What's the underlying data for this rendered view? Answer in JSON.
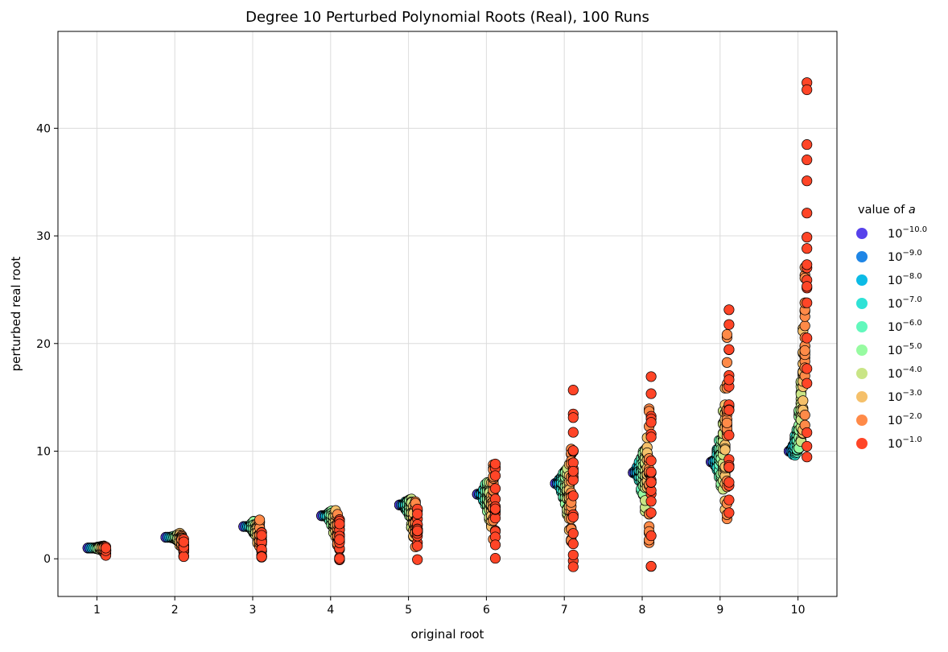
{
  "chart_data": {
    "type": "scatter",
    "title": "Degree 10 Perturbed Polynomial Roots (Real), 100 Runs",
    "xlabel": "original root",
    "ylabel": "perturbed real root",
    "xlim": [
      0.5,
      10.5
    ],
    "ylim": [
      -3.5,
      49
    ],
    "x_ticks": [
      "1",
      "2",
      "3",
      "4",
      "5",
      "6",
      "7",
      "8",
      "9",
      "10"
    ],
    "y_ticks": [
      0,
      10,
      20,
      30,
      40
    ],
    "grid": true,
    "legend": {
      "title": "value of a",
      "title_prefix": "value of ",
      "title_var": "a",
      "placement": "right"
    },
    "series": [
      {
        "name": "10^-10.0",
        "base": "10",
        "exp": "−10.0",
        "color": "#5742eb"
      },
      {
        "name": "10^-9.0",
        "base": "10",
        "exp": "−9.0",
        "color": "#1f86e6"
      },
      {
        "name": "10^-8.0",
        "base": "10",
        "exp": "−8.0",
        "color": "#0cbbe6"
      },
      {
        "name": "10^-7.0",
        "base": "10",
        "exp": "−7.0",
        "color": "#2fe2d6"
      },
      {
        "name": "10^-6.0",
        "base": "10",
        "exp": "−6.0",
        "color": "#62f8bc"
      },
      {
        "name": "10^-5.0",
        "base": "10",
        "exp": "−5.0",
        "color": "#97fba1"
      },
      {
        "name": "10^-4.0",
        "base": "10",
        "exp": "−4.0",
        "color": "#c9e586"
      },
      {
        "name": "10^-3.0",
        "base": "10",
        "exp": "−3.0",
        "color": "#f5c06a"
      },
      {
        "name": "10^-2.0",
        "base": "10",
        "exp": "−2.0",
        "color": "#ff8a48"
      },
      {
        "name": "10^-1.0",
        "base": "10",
        "exp": "−1.0",
        "color": "#ff4527"
      }
    ],
    "series_spread_y": [
      {
        "root": 1,
        "ranges": [
          [
            1,
            1
          ],
          [
            1,
            1
          ],
          [
            1,
            1
          ],
          [
            1,
            1
          ],
          [
            0.95,
            1.05
          ],
          [
            0.9,
            1.1
          ],
          [
            0.85,
            1.15
          ],
          [
            0.8,
            1.2
          ],
          [
            0.6,
            1.2
          ],
          [
            0.3,
            1.1
          ]
        ]
      },
      {
        "root": 2,
        "ranges": [
          [
            2,
            2
          ],
          [
            2,
            2
          ],
          [
            2,
            2
          ],
          [
            1.95,
            2.05
          ],
          [
            1.9,
            2.1
          ],
          [
            1.8,
            2.2
          ],
          [
            1.6,
            2.3
          ],
          [
            1.2,
            2.4
          ],
          [
            0.7,
            2.3
          ],
          [
            0.2,
            2.1
          ]
        ]
      },
      {
        "root": 3,
        "ranges": [
          [
            3,
            3
          ],
          [
            3,
            3
          ],
          [
            3,
            3
          ],
          [
            2.9,
            3.1
          ],
          [
            2.7,
            3.3
          ],
          [
            2.4,
            3.5
          ],
          [
            2.0,
            3.5
          ],
          [
            1.4,
            3.6
          ],
          [
            0.8,
            3.8
          ],
          [
            0.1,
            3.0
          ]
        ]
      },
      {
        "root": 4,
        "ranges": [
          [
            4,
            4
          ],
          [
            4,
            4
          ],
          [
            3.95,
            4.05
          ],
          [
            3.8,
            4.2
          ],
          [
            3.5,
            4.4
          ],
          [
            3.0,
            4.5
          ],
          [
            2.4,
            4.4
          ],
          [
            1.7,
            4.5
          ],
          [
            0.9,
            4.5
          ],
          [
            -0.1,
            3.7
          ]
        ]
      },
      {
        "root": 5,
        "ranges": [
          [
            5,
            5
          ],
          [
            5,
            5
          ],
          [
            4.9,
            5.1
          ],
          [
            4.6,
            5.4
          ],
          [
            4.2,
            5.5
          ],
          [
            3.6,
            5.6
          ],
          [
            2.8,
            5.7
          ],
          [
            2.0,
            5.8
          ],
          [
            1.0,
            5.8
          ],
          [
            -0.4,
            5.6
          ]
        ]
      },
      {
        "root": 6,
        "ranges": [
          [
            6,
            6
          ],
          [
            6,
            6
          ],
          [
            5.8,
            6.2
          ],
          [
            5.4,
            6.6
          ],
          [
            4.9,
            7.0
          ],
          [
            4.2,
            7.3
          ],
          [
            3.3,
            7.6
          ],
          [
            2.2,
            7.8
          ],
          [
            0.8,
            8.8
          ],
          [
            -0.6,
            9.4
          ]
        ]
      },
      {
        "root": 7,
        "ranges": [
          [
            7,
            7
          ],
          [
            6.95,
            7.05
          ],
          [
            6.7,
            7.4
          ],
          [
            6.2,
            7.8
          ],
          [
            5.5,
            8.2
          ],
          [
            4.7,
            8.6
          ],
          [
            3.7,
            9.0
          ],
          [
            2.4,
            9.2
          ],
          [
            0.7,
            10.7
          ],
          [
            -1.3,
            16.8
          ]
        ]
      },
      {
        "root": 8,
        "ranges": [
          [
            8,
            8
          ],
          [
            7.9,
            8.2
          ],
          [
            7.5,
            8.6
          ],
          [
            7.0,
            9.2
          ],
          [
            6.3,
            9.8
          ],
          [
            5.4,
            10.2
          ],
          [
            4.3,
            11.0
          ],
          [
            2.8,
            12.9
          ],
          [
            1.0,
            15.2
          ],
          [
            -1.2,
            17.5
          ]
        ]
      },
      {
        "root": 9,
        "ranges": [
          [
            9,
            9
          ],
          [
            8.9,
            9.1
          ],
          [
            8.6,
            9.6
          ],
          [
            8.2,
            10.2
          ],
          [
            7.5,
            11.0
          ],
          [
            6.6,
            12.0
          ],
          [
            5.6,
            13.8
          ],
          [
            4.2,
            17.0
          ],
          [
            2.5,
            21.0
          ],
          [
            0.2,
            27.5
          ]
        ]
      },
      {
        "root": 10,
        "ranges": [
          [
            10,
            10
          ],
          [
            9.9,
            10.2
          ],
          [
            9.6,
            10.6
          ],
          [
            9.4,
            11.5
          ],
          [
            9.5,
            12.5
          ],
          [
            10.0,
            14.0
          ],
          [
            10.3,
            16.5
          ],
          [
            11.0,
            22.0
          ],
          [
            12.0,
            28.0
          ],
          [
            8.2,
            46.5
          ]
        ]
      }
    ]
  }
}
